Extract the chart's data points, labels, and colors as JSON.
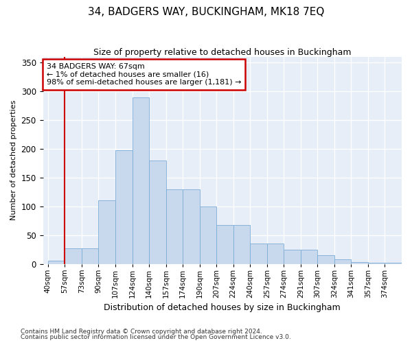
{
  "title": "34, BADGERS WAY, BUCKINGHAM, MK18 7EQ",
  "subtitle": "Size of property relative to detached houses in Buckingham",
  "xlabel": "Distribution of detached houses by size in Buckingham",
  "ylabel": "Number of detached properties",
  "bar_color": "#c8d9ed",
  "bar_edge_color": "#7bacd6",
  "bar_heights": [
    5,
    27,
    27,
    110,
    198,
    290,
    180,
    130,
    130,
    100,
    68,
    68,
    35,
    35,
    25,
    25,
    15,
    8,
    3,
    2,
    2
  ],
  "bin_labels": [
    "40sqm",
    "57sqm",
    "73sqm",
    "90sqm",
    "107sqm",
    "124sqm",
    "140sqm",
    "157sqm",
    "174sqm",
    "190sqm",
    "207sqm",
    "224sqm",
    "240sqm",
    "257sqm",
    "274sqm",
    "291sqm",
    "307sqm",
    "324sqm",
    "341sqm",
    "357sqm",
    "374sqm"
  ],
  "ylim": [
    0,
    360
  ],
  "yticks": [
    0,
    50,
    100,
    150,
    200,
    250,
    300,
    350
  ],
  "annotation_text": "34 BADGERS WAY: 67sqm\n← 1% of detached houses are smaller (16)\n98% of semi-detached houses are larger (1,181) →",
  "annotation_box_color": "#ffffff",
  "annotation_box_edge": "#cc0000",
  "bg_color": "#e8eef8",
  "footnote1": "Contains HM Land Registry data © Crown copyright and database right 2024.",
  "footnote2": "Contains public sector information licensed under the Open Government Licence v3.0.",
  "vline_color": "#cc0000",
  "vline_x": 1.0
}
